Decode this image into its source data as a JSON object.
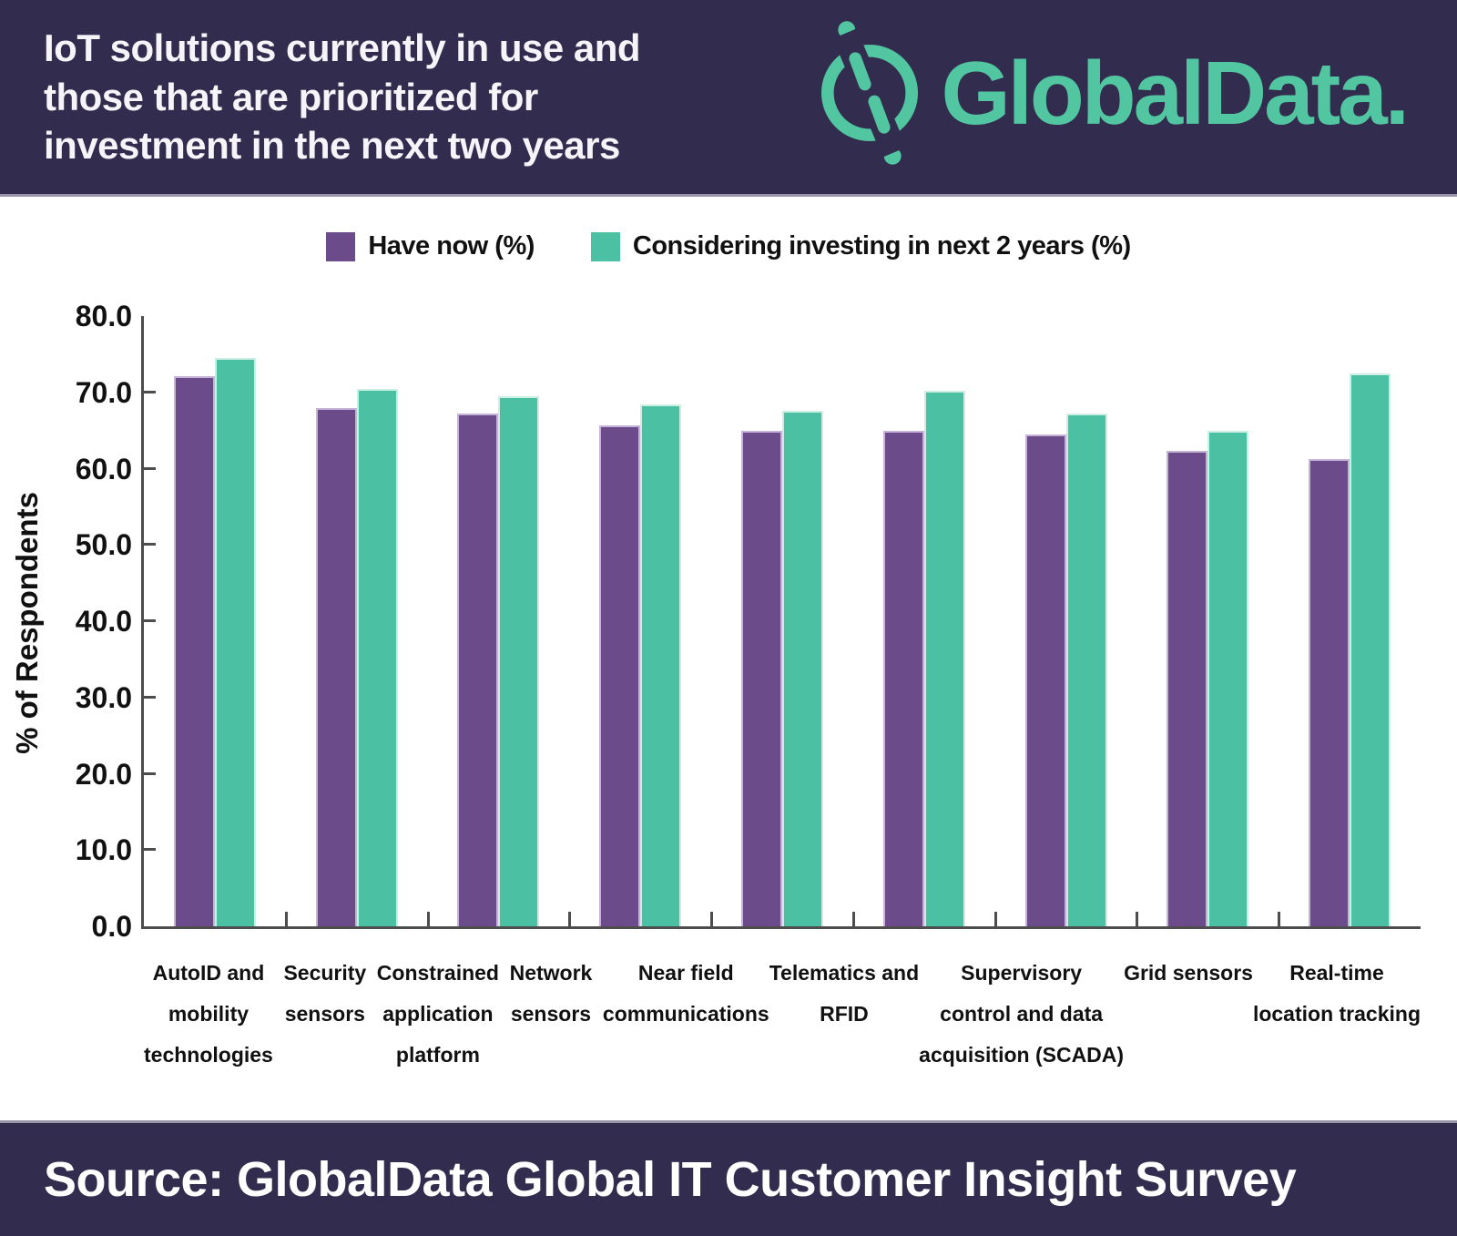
{
  "header": {
    "title": "IoT solutions currently in use and those that are prioritized for investment in the next two years",
    "title_lines": [
      "IoT solutions currently in use and",
      "those that are prioritized for",
      "investment in the next two years"
    ],
    "brand": "GlobalData."
  },
  "legend": {
    "items": [
      {
        "label": "Have now (%)",
        "color": "#6b4b89"
      },
      {
        "label": "Considering investing in next 2 years (%)",
        "color": "#4cc0a2"
      }
    ]
  },
  "chart_data": {
    "type": "bar",
    "title": "IoT solutions currently in use and those that are prioritized for investment in the next two years",
    "ylabel": "% of Respondents",
    "xlabel": "",
    "ylim": [
      0,
      80
    ],
    "ytick_step": 10,
    "ytick_format": "one-decimal",
    "grid": false,
    "legend_position": "top-center",
    "categories": [
      "AutoID and mobility technologies",
      "Security sensors",
      "Constrained application platform",
      "Network sensors",
      "Near field communications",
      "Telematics and RFID",
      "Supervisory control and data acquisition (SCADA)",
      "Grid sensors",
      "Real-time location tracking"
    ],
    "categories_display": [
      [
        "AutoID and",
        "mobility",
        "technologies"
      ],
      [
        "Security",
        "sensors"
      ],
      [
        "Constrained",
        "application",
        "platform"
      ],
      [
        "Network",
        "sensors"
      ],
      [
        "Near field",
        "communications"
      ],
      [
        "Telematics and",
        "RFID"
      ],
      [
        "Supervisory",
        "control and data",
        "acquisition (SCADA)"
      ],
      [
        "Grid sensors"
      ],
      [
        "Real-time",
        "location tracking"
      ]
    ],
    "series": [
      {
        "name": "Have now (%)",
        "color": "#6b4b89",
        "border_color": "#c6b4d8",
        "values": [
          72.1,
          68.0,
          67.2,
          65.7,
          65.0,
          65.0,
          64.5,
          62.3,
          61.2
        ]
      },
      {
        "name": "Considering investing in next 2 years (%)",
        "color": "#4cc0a2",
        "border_color": "#cdeee3",
        "values": [
          74.5,
          70.5,
          69.5,
          68.4,
          67.6,
          70.2,
          67.2,
          65.0,
          72.5
        ]
      }
    ]
  },
  "source": {
    "text": "Source: GlobalData Global IT Customer Insight Survey"
  },
  "colors": {
    "header_bg": "#322c4e",
    "brand_teal": "#52c6a0",
    "axis": "#4d4d4d",
    "divider": "#9a96a8"
  }
}
